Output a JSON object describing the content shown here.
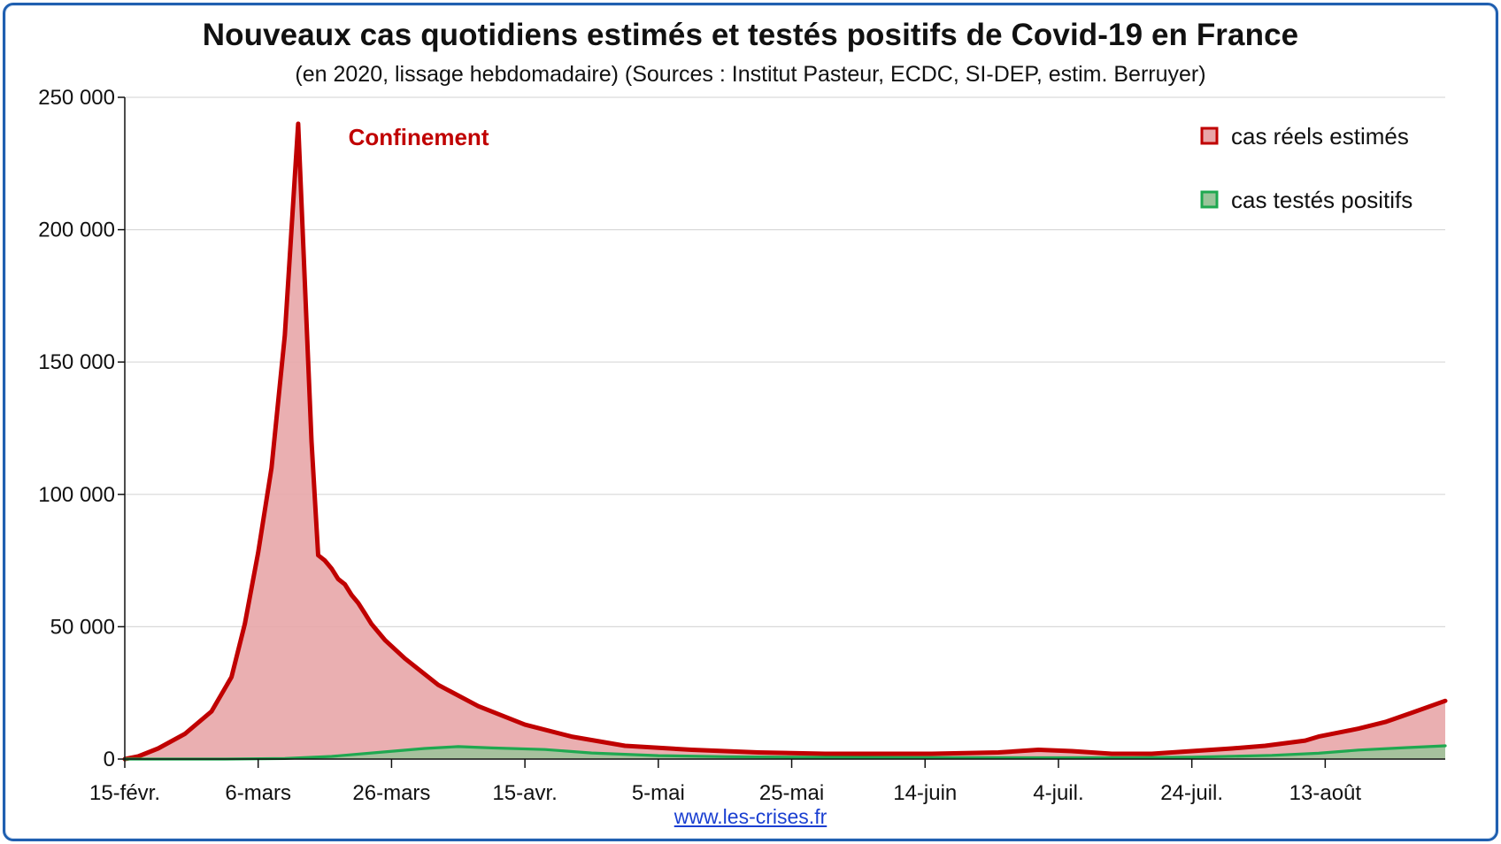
{
  "title": "Nouveaux cas quotidiens estimés et testés positifs de Covid-19 en France",
  "subtitle": "(en 2020, lissage hebdomadaire) (Sources : Institut Pasteur, ECDC, SI-DEP, estim. Berruyer)",
  "source_link": "www.les-crises.fr",
  "colors": {
    "frame": "#1f5fb0",
    "estimated_line": "#c00000",
    "estimated_fill": "#e8a6a8",
    "tested_line": "#1fa850",
    "tested_fill": "#9ac49a",
    "grid": "#d9d9d9",
    "axis": "#111111",
    "link": "#1a3fd1"
  },
  "chart_data": {
    "type": "area",
    "title": "Nouveaux cas quotidiens estimés et testés positifs de Covid-19 en France",
    "subtitle": "(en 2020, lissage hebdomadaire) (Sources : Institut Pasteur, ECDC, SI-DEP, estim. Berruyer)",
    "x_start": "2020-02-15",
    "x_end": "2020-08-31",
    "xticks": [
      "15-févr.",
      "6-mars",
      "26-mars",
      "15-avr.",
      "5-mai",
      "25-mai",
      "14-juin",
      "4-juil.",
      "24-juil.",
      "13-août"
    ],
    "xtick_dates": [
      "2020-02-15",
      "2020-03-06",
      "2020-03-26",
      "2020-04-15",
      "2020-05-05",
      "2020-05-25",
      "2020-06-14",
      "2020-07-04",
      "2020-07-24",
      "2020-08-13"
    ],
    "yticks": [
      "0",
      "50 000",
      "100 000",
      "150 000",
      "200 000",
      "250 000"
    ],
    "ylim": [
      0,
      250000
    ],
    "grid": true,
    "legend_position": "top-right",
    "annotation": {
      "text": "Confinement",
      "date": "2020-03-17",
      "color": "#c00000"
    },
    "series": [
      {
        "name": "cas réels estimés",
        "color": "#c00000",
        "fill": "#e8a6a8",
        "x": [
          "2020-02-15",
          "2020-02-17",
          "2020-02-20",
          "2020-02-24",
          "2020-02-28",
          "2020-03-02",
          "2020-03-04",
          "2020-03-06",
          "2020-03-08",
          "2020-03-10",
          "2020-03-12",
          "2020-03-14",
          "2020-03-15",
          "2020-03-16",
          "2020-03-17",
          "2020-03-18",
          "2020-03-19",
          "2020-03-20",
          "2020-03-21",
          "2020-03-22",
          "2020-03-23",
          "2020-03-25",
          "2020-03-28",
          "2020-04-02",
          "2020-04-08",
          "2020-04-15",
          "2020-04-22",
          "2020-04-30",
          "2020-05-10",
          "2020-05-20",
          "2020-05-30",
          "2020-06-07",
          "2020-06-15",
          "2020-06-25",
          "2020-07-01",
          "2020-07-06",
          "2020-07-12",
          "2020-07-18",
          "2020-07-24",
          "2020-07-30",
          "2020-08-04",
          "2020-08-10",
          "2020-08-12",
          "2020-08-16",
          "2020-08-18",
          "2020-08-22",
          "2020-08-26",
          "2020-08-31"
        ],
        "values": [
          0,
          1000,
          4000,
          9500,
          18000,
          31000,
          51000,
          78000,
          110000,
          160000,
          240000,
          120000,
          77000,
          75000,
          72000,
          68000,
          66000,
          62000,
          59000,
          55000,
          51000,
          45000,
          38000,
          28000,
          20000,
          13000,
          8500,
          5000,
          3500,
          2500,
          2000,
          2000,
          2000,
          2500,
          3500,
          3000,
          2000,
          2000,
          3000,
          4000,
          5000,
          7000,
          8500,
          10500,
          11500,
          14000,
          17500,
          22000
        ]
      },
      {
        "name": "cas testés positifs",
        "color": "#1fa850",
        "fill": "#9ac49a",
        "x": [
          "2020-02-15",
          "2020-03-01",
          "2020-03-10",
          "2020-03-17",
          "2020-03-24",
          "2020-03-31",
          "2020-04-05",
          "2020-04-10",
          "2020-04-18",
          "2020-04-25",
          "2020-05-05",
          "2020-05-15",
          "2020-05-25",
          "2020-06-10",
          "2020-06-30",
          "2020-07-15",
          "2020-07-24",
          "2020-08-05",
          "2020-08-12",
          "2020-08-18",
          "2020-08-25",
          "2020-08-31"
        ],
        "values": [
          0,
          0,
          200,
          1000,
          2500,
          4000,
          4700,
          4200,
          3600,
          2300,
          1300,
          900,
          700,
          600,
          500,
          500,
          700,
          1400,
          2200,
          3400,
          4300,
          5000
        ]
      }
    ]
  }
}
